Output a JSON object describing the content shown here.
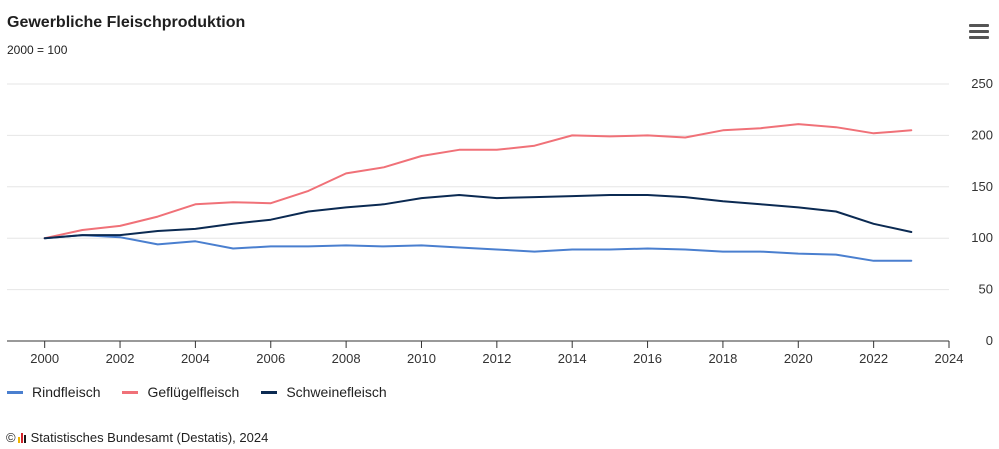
{
  "header": {
    "title": "Gewerbliche Fleischproduktion",
    "subtitle": "2000 = 100"
  },
  "menu": {
    "icon": "hamburger-menu-icon"
  },
  "credit": {
    "symbol": "©",
    "text": "Statistisches Bundesamt (Destatis), 2024"
  },
  "chart_data": {
    "type": "line",
    "title": "Gewerbliche Fleischproduktion",
    "subtitle": "2000 = 100",
    "x": [
      2000,
      2001,
      2002,
      2003,
      2004,
      2005,
      2006,
      2007,
      2008,
      2009,
      2010,
      2011,
      2012,
      2013,
      2014,
      2015,
      2016,
      2017,
      2018,
      2019,
      2020,
      2021,
      2022,
      2023
    ],
    "xlim": [
      1999,
      2024
    ],
    "x_ticks": [
      2000,
      2002,
      2004,
      2006,
      2008,
      2010,
      2012,
      2014,
      2016,
      2018,
      2020,
      2022,
      2024
    ],
    "ylim": [
      0,
      250
    ],
    "y_ticks": [
      0,
      50,
      100,
      150,
      200,
      250
    ],
    "y_axis_side": "right",
    "grid": true,
    "legend_position": "bottom-left",
    "series": [
      {
        "name": "Rindfleisch",
        "color": "#4a7fcf",
        "values": [
          100,
          103,
          101,
          94,
          97,
          90,
          92,
          92,
          93,
          92,
          93,
          91,
          89,
          87,
          89,
          89,
          90,
          89,
          87,
          87,
          85,
          84,
          78,
          78
        ]
      },
      {
        "name": "Geflügelfleisch",
        "color": "#f07178",
        "values": [
          100,
          108,
          112,
          121,
          133,
          135,
          134,
          146,
          163,
          169,
          180,
          186,
          186,
          190,
          200,
          199,
          200,
          198,
          205,
          207,
          211,
          208,
          202,
          205
        ]
      },
      {
        "name": "Schweinefleisch",
        "color": "#0b2a52",
        "values": [
          100,
          103,
          103,
          107,
          109,
          114,
          118,
          126,
          130,
          133,
          139,
          142,
          139,
          140,
          141,
          142,
          142,
          140,
          136,
          133,
          130,
          126,
          114,
          106
        ]
      }
    ]
  }
}
